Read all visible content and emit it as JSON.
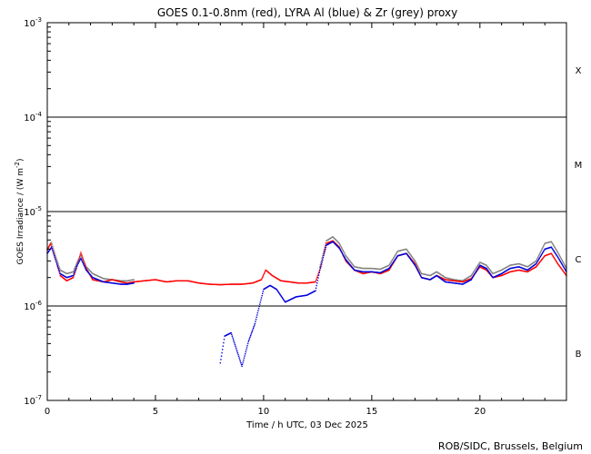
{
  "chart_data": {
    "type": "scatter",
    "title": "GOES 0.1-0.8nm (red), LYRA Al (blue) & Zr (grey) proxy",
    "xlabel": "Time / h UTC, 03 Dec 2025",
    "ylabel_main": "GOES Irradiance / (W m",
    "ylabel_exp": "-2",
    "ylabel_close": ")",
    "credit": "ROB/SIDC, Brussels, Belgium",
    "xlim": [
      0,
      24
    ],
    "ylim": [
      1e-07,
      0.001
    ],
    "yscale": "log",
    "x_ticks": [
      {
        "v": 0,
        "label": "0"
      },
      {
        "v": 5,
        "label": "5"
      },
      {
        "v": 10,
        "label": "10"
      },
      {
        "v": 15,
        "label": "15"
      },
      {
        "v": 20,
        "label": "20"
      }
    ],
    "y_ticks": [
      {
        "exp": -7,
        "base": "10",
        "sup": "-7"
      },
      {
        "exp": -6,
        "base": "10",
        "sup": "-6"
      },
      {
        "exp": -5,
        "base": "10",
        "sup": "-5"
      },
      {
        "exp": -4,
        "base": "10",
        "sup": "-4"
      },
      {
        "exp": -3,
        "base": "10",
        "sup": "-3"
      }
    ],
    "flare_classes": [
      {
        "label": "X",
        "log_center": -3.5
      },
      {
        "label": "M",
        "log_center": -4.5
      },
      {
        "label": "C",
        "log_center": -5.5
      },
      {
        "label": "B",
        "log_center": -6.5
      }
    ],
    "class_lines_log": [
      -6,
      -5,
      -4
    ],
    "colors": {
      "goes": "#ff0000",
      "al": "#0000dd",
      "zr": "#808080",
      "axis": "#000000"
    },
    "series": [
      {
        "key": "goes",
        "points": [
          [
            0,
            3.9e-06
          ],
          [
            0.15,
            4.6e-06
          ],
          [
            0.35,
            3.3e-06
          ],
          [
            0.6,
            2.1e-06
          ],
          [
            0.9,
            1.85e-06
          ],
          [
            1.2,
            2e-06
          ],
          [
            1.35,
            2.5e-06
          ],
          [
            1.55,
            3.7e-06
          ],
          [
            1.8,
            2.5e-06
          ],
          [
            2.1,
            1.9e-06
          ],
          [
            2.6,
            1.8e-06
          ],
          [
            3.0,
            1.9e-06
          ],
          [
            3.4,
            1.8e-06
          ],
          [
            3.7,
            1.75e-06
          ],
          [
            4.0,
            1.8e-06
          ],
          [
            4.5,
            1.85e-06
          ],
          [
            5.0,
            1.9e-06
          ],
          [
            5.5,
            1.8e-06
          ],
          [
            6.0,
            1.85e-06
          ],
          [
            6.5,
            1.85e-06
          ],
          [
            7.0,
            1.75e-06
          ],
          [
            7.5,
            1.7e-06
          ],
          [
            8.0,
            1.68e-06
          ],
          [
            8.5,
            1.7e-06
          ],
          [
            9.0,
            1.7e-06
          ],
          [
            9.5,
            1.75e-06
          ],
          [
            9.9,
            1.9e-06
          ],
          [
            10.1,
            2.4e-06
          ],
          [
            10.4,
            2.1e-06
          ],
          [
            10.8,
            1.85e-06
          ],
          [
            11.2,
            1.8e-06
          ],
          [
            11.6,
            1.75e-06
          ],
          [
            12.0,
            1.75e-06
          ],
          [
            12.4,
            1.8e-06
          ],
          [
            12.65,
            2.6e-06
          ],
          [
            12.9,
            4.6e-06
          ],
          [
            13.2,
            4.9e-06
          ],
          [
            13.5,
            4.2e-06
          ],
          [
            13.8,
            3e-06
          ],
          [
            14.2,
            2.4e-06
          ],
          [
            14.6,
            2.2e-06
          ],
          [
            15.0,
            2.3e-06
          ],
          [
            15.4,
            2.2e-06
          ],
          [
            15.8,
            2.4e-06
          ],
          [
            16.2,
            3.4e-06
          ],
          [
            16.6,
            3.6e-06
          ],
          [
            17.0,
            2.8e-06
          ],
          [
            17.3,
            2e-06
          ],
          [
            17.7,
            1.9e-06
          ],
          [
            18.0,
            2.1e-06
          ],
          [
            18.4,
            1.9e-06
          ],
          [
            18.8,
            1.85e-06
          ],
          [
            19.2,
            1.8e-06
          ],
          [
            19.6,
            1.95e-06
          ],
          [
            20.0,
            2.6e-06
          ],
          [
            20.3,
            2.4e-06
          ],
          [
            20.6,
            2e-06
          ],
          [
            21.0,
            2.1e-06
          ],
          [
            21.4,
            2.3e-06
          ],
          [
            21.8,
            2.4e-06
          ],
          [
            22.2,
            2.3e-06
          ],
          [
            22.6,
            2.6e-06
          ],
          [
            23.0,
            3.4e-06
          ],
          [
            23.3,
            3.6e-06
          ],
          [
            23.6,
            2.8e-06
          ],
          [
            24.0,
            2.1e-06
          ]
        ]
      },
      {
        "key": "al",
        "points": [
          [
            0,
            3.6e-06
          ],
          [
            0.2,
            4.2e-06
          ],
          [
            0.4,
            3e-06
          ],
          [
            0.6,
            2.2e-06
          ],
          [
            0.9,
            2e-06
          ],
          [
            1.2,
            2.1e-06
          ],
          [
            1.35,
            2.6e-06
          ],
          [
            1.55,
            3.2e-06
          ],
          [
            1.8,
            2.4e-06
          ],
          [
            2.1,
            2e-06
          ],
          [
            2.6,
            1.8e-06
          ],
          [
            3.0,
            1.75e-06
          ],
          [
            3.4,
            1.7e-06
          ],
          [
            3.7,
            1.7e-06
          ],
          [
            4.0,
            1.75e-06
          ],
          [
            8.0,
            2.5e-07
          ],
          [
            8.2,
            4.8e-07
          ],
          [
            8.5,
            5.2e-07
          ],
          [
            9.0,
            2.3e-07
          ],
          [
            9.3,
            4.2e-07
          ],
          [
            9.6,
            6.5e-07
          ],
          [
            9.85,
            1.1e-06
          ],
          [
            10.0,
            1.5e-06
          ],
          [
            10.3,
            1.65e-06
          ],
          [
            10.6,
            1.5e-06
          ],
          [
            11.0,
            1.1e-06
          ],
          [
            11.5,
            1.25e-06
          ],
          [
            12.0,
            1.3e-06
          ],
          [
            12.4,
            1.45e-06
          ],
          [
            12.6,
            2.4e-06
          ],
          [
            12.9,
            4.4e-06
          ],
          [
            13.2,
            4.8e-06
          ],
          [
            13.5,
            4.1e-06
          ],
          [
            13.8,
            3.1e-06
          ],
          [
            14.2,
            2.4e-06
          ],
          [
            14.6,
            2.3e-06
          ],
          [
            15.0,
            2.3e-06
          ],
          [
            15.4,
            2.25e-06
          ],
          [
            15.8,
            2.5e-06
          ],
          [
            16.2,
            3.4e-06
          ],
          [
            16.6,
            3.6e-06
          ],
          [
            17.0,
            2.7e-06
          ],
          [
            17.3,
            2e-06
          ],
          [
            17.7,
            1.9e-06
          ],
          [
            18.0,
            2.1e-06
          ],
          [
            18.4,
            1.8e-06
          ],
          [
            18.8,
            1.75e-06
          ],
          [
            19.2,
            1.7e-06
          ],
          [
            19.6,
            1.9e-06
          ],
          [
            20.0,
            2.7e-06
          ],
          [
            20.3,
            2.5e-06
          ],
          [
            20.6,
            2e-06
          ],
          [
            21.0,
            2.2e-06
          ],
          [
            21.4,
            2.5e-06
          ],
          [
            21.8,
            2.6e-06
          ],
          [
            22.2,
            2.4e-06
          ],
          [
            22.6,
            2.8e-06
          ],
          [
            23.0,
            4e-06
          ],
          [
            23.3,
            4.2e-06
          ],
          [
            23.6,
            3.3e-06
          ],
          [
            24.0,
            2.3e-06
          ]
        ]
      },
      {
        "key": "zr",
        "points": [
          [
            0,
            4e-06
          ],
          [
            0.2,
            4.7e-06
          ],
          [
            0.4,
            3.3e-06
          ],
          [
            0.6,
            2.4e-06
          ],
          [
            0.9,
            2.2e-06
          ],
          [
            1.2,
            2.3e-06
          ],
          [
            1.35,
            2.8e-06
          ],
          [
            1.55,
            3.5e-06
          ],
          [
            1.8,
            2.6e-06
          ],
          [
            2.1,
            2.2e-06
          ],
          [
            2.6,
            1.95e-06
          ],
          [
            3.0,
            1.9e-06
          ],
          [
            3.4,
            1.85e-06
          ],
          [
            3.7,
            1.85e-06
          ],
          [
            4.0,
            1.9e-06
          ],
          [
            12.6,
            2.6e-06
          ],
          [
            12.9,
            4.9e-06
          ],
          [
            13.2,
            5.4e-06
          ],
          [
            13.5,
            4.6e-06
          ],
          [
            13.8,
            3.4e-06
          ],
          [
            14.2,
            2.6e-06
          ],
          [
            14.6,
            2.5e-06
          ],
          [
            15.0,
            2.5e-06
          ],
          [
            15.4,
            2.45e-06
          ],
          [
            15.8,
            2.7e-06
          ],
          [
            16.2,
            3.8e-06
          ],
          [
            16.6,
            4e-06
          ],
          [
            17.0,
            3e-06
          ],
          [
            17.3,
            2.2e-06
          ],
          [
            17.7,
            2.1e-06
          ],
          [
            18.0,
            2.3e-06
          ],
          [
            18.4,
            2e-06
          ],
          [
            18.8,
            1.9e-06
          ],
          [
            19.2,
            1.85e-06
          ],
          [
            19.6,
            2.1e-06
          ],
          [
            20.0,
            2.9e-06
          ],
          [
            20.3,
            2.7e-06
          ],
          [
            20.6,
            2.2e-06
          ],
          [
            21.0,
            2.4e-06
          ],
          [
            21.4,
            2.7e-06
          ],
          [
            21.8,
            2.8e-06
          ],
          [
            22.2,
            2.6e-06
          ],
          [
            22.6,
            3e-06
          ],
          [
            23.0,
            4.6e-06
          ],
          [
            23.3,
            4.8e-06
          ],
          [
            23.6,
            3.7e-06
          ],
          [
            24.0,
            2.5e-06
          ]
        ]
      }
    ]
  }
}
